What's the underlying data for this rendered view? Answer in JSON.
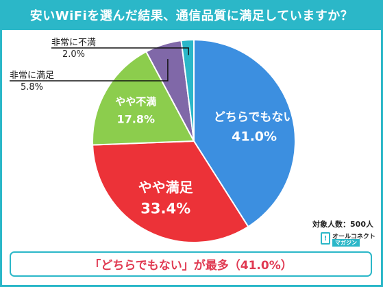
{
  "header": {
    "title": "安いWiFiを選んだ結果、通信品質に満足していますか？"
  },
  "chart_data": {
    "type": "pie",
    "unit": "%",
    "slices": [
      {
        "name": "どちらでもない",
        "value": 41.0,
        "label": "41.0%",
        "color": "#3c8fe0",
        "label_inside": true
      },
      {
        "name": "やや満足",
        "value": 33.4,
        "label": "33.4%",
        "color": "#ec3238",
        "label_inside": true
      },
      {
        "name": "やや不満",
        "value": 17.8,
        "label": "17.8%",
        "color": "#8ccd4d",
        "label_inside": true
      },
      {
        "name": "非常に満足",
        "value": 5.8,
        "label": "5.8%",
        "color": "#8068a8",
        "label_inside": false
      },
      {
        "name": "非常に不満",
        "value": 2.0,
        "label": "2.0%",
        "color": "#2bb7c8",
        "label_inside": false
      }
    ]
  },
  "sample_size": "対象人数：500人",
  "logo": {
    "top": "オールコネクト",
    "bottom": "マガジン"
  },
  "summary": "「どちらでもない」が最多（41.0%）",
  "colors": {
    "accent": "#2bb7c8",
    "summary_text": "#e03a52"
  }
}
